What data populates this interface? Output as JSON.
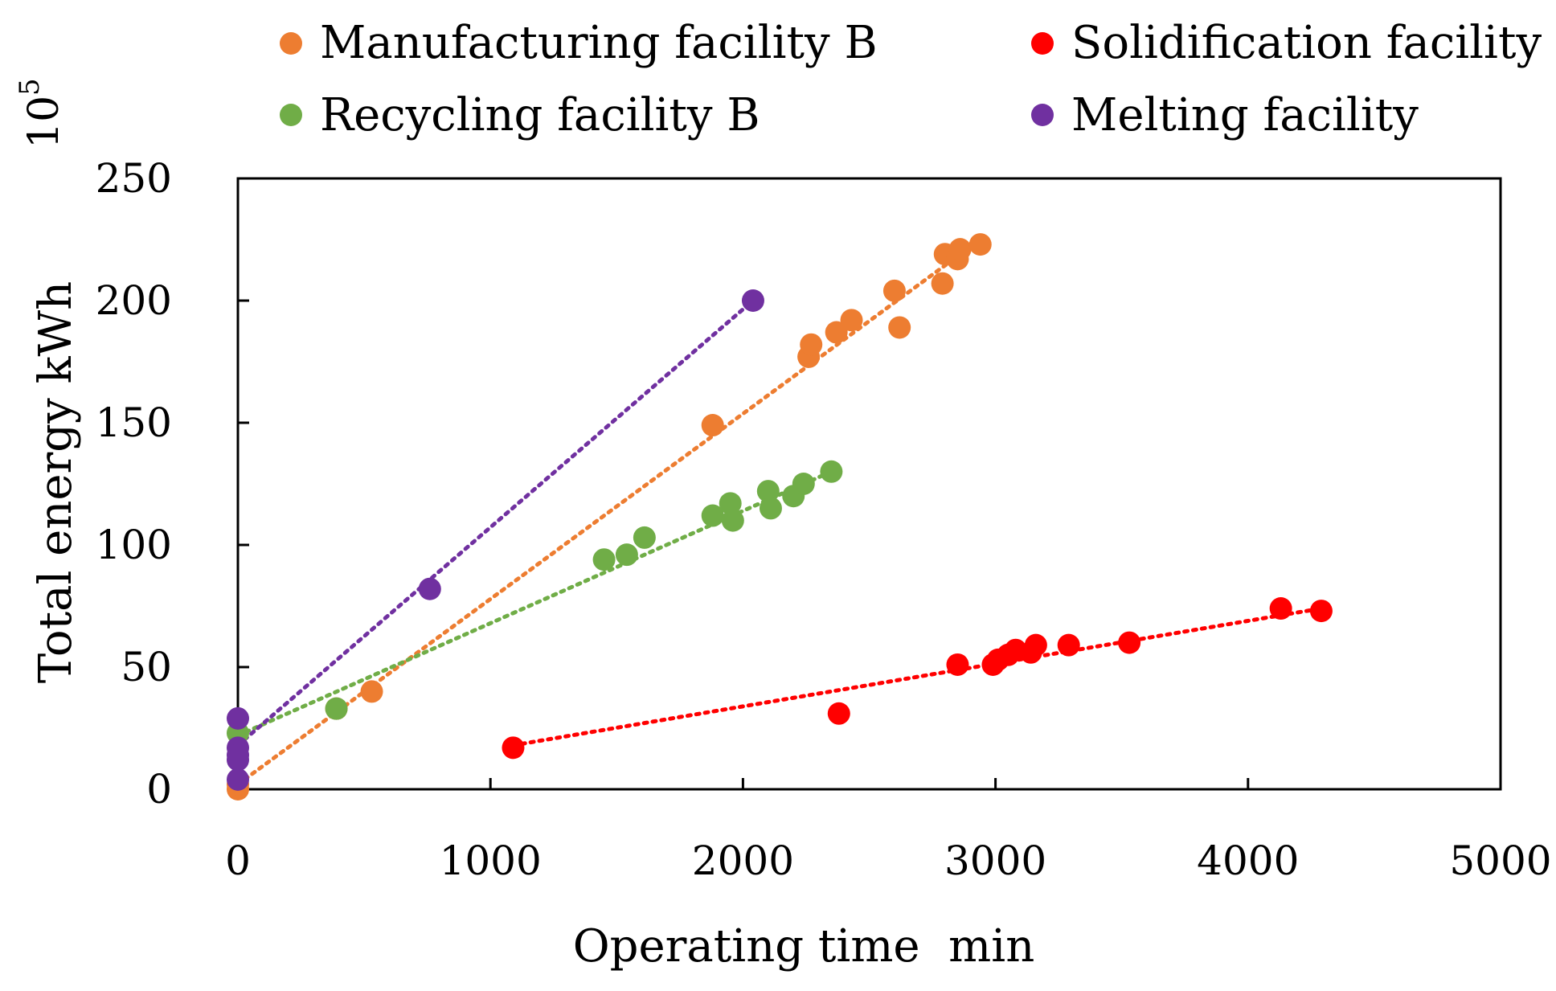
{
  "chart_data": {
    "type": "scatter",
    "title": "",
    "xlabel": "Operating time  min",
    "ylabel": "Total energy kWh",
    "y_exponent": "10",
    "y_exponent_power": "5",
    "xlim": [
      0,
      5000
    ],
    "ylim": [
      0,
      250
    ],
    "xticks": [
      "0",
      "1000",
      "2000",
      "3000",
      "4000",
      "5000"
    ],
    "yticks": [
      "0",
      "50",
      "100",
      "150",
      "200",
      "250"
    ],
    "legend_position": "top",
    "series": [
      {
        "name": "Manufacturing facility B",
        "color": "#ED7D31",
        "points": [
          [
            0,
            0
          ],
          [
            0,
            2
          ],
          [
            390,
            33
          ],
          [
            530,
            40
          ],
          [
            1880,
            149
          ],
          [
            2260,
            177
          ],
          [
            2270,
            182
          ],
          [
            2370,
            187
          ],
          [
            2430,
            192
          ],
          [
            2600,
            204
          ],
          [
            2620,
            189
          ],
          [
            2790,
            207
          ],
          [
            2800,
            219
          ],
          [
            2850,
            217
          ],
          [
            2860,
            221
          ],
          [
            2940,
            223
          ]
        ],
        "trendline": [
          [
            0,
            2
          ],
          [
            2940,
            225
          ]
        ]
      },
      {
        "name": "Recycling facility B",
        "color": "#70AD47",
        "points": [
          [
            0,
            23
          ],
          [
            390,
            33
          ],
          [
            1450,
            94
          ],
          [
            1540,
            96
          ],
          [
            1610,
            103
          ],
          [
            1880,
            112
          ],
          [
            1950,
            117
          ],
          [
            1960,
            110
          ],
          [
            2100,
            122
          ],
          [
            2110,
            115
          ],
          [
            2200,
            120
          ],
          [
            2240,
            125
          ],
          [
            2350,
            130
          ]
        ],
        "trendline": [
          [
            0,
            22
          ],
          [
            2350,
            130
          ]
        ]
      },
      {
        "name": "Solidification facility",
        "color": "#FF0000",
        "points": [
          [
            1090,
            17
          ],
          [
            2380,
            31
          ],
          [
            2850,
            51
          ],
          [
            2990,
            51
          ],
          [
            3010,
            53
          ],
          [
            3050,
            55
          ],
          [
            3080,
            57
          ],
          [
            3140,
            56
          ],
          [
            3160,
            59
          ],
          [
            3290,
            59
          ],
          [
            3530,
            60
          ],
          [
            4130,
            74
          ],
          [
            4290,
            73
          ]
        ],
        "trendline": [
          [
            1090,
            18
          ],
          [
            4290,
            74
          ]
        ]
      },
      {
        "name": "Melting facility",
        "color": "#7030A0",
        "points": [
          [
            0,
            29
          ],
          [
            0,
            17
          ],
          [
            0,
            14
          ],
          [
            0,
            12
          ],
          [
            0,
            4
          ],
          [
            760,
            82
          ],
          [
            2040,
            200
          ]
        ],
        "trendline": [
          [
            0,
            18
          ],
          [
            2040,
            200
          ]
        ]
      }
    ]
  }
}
